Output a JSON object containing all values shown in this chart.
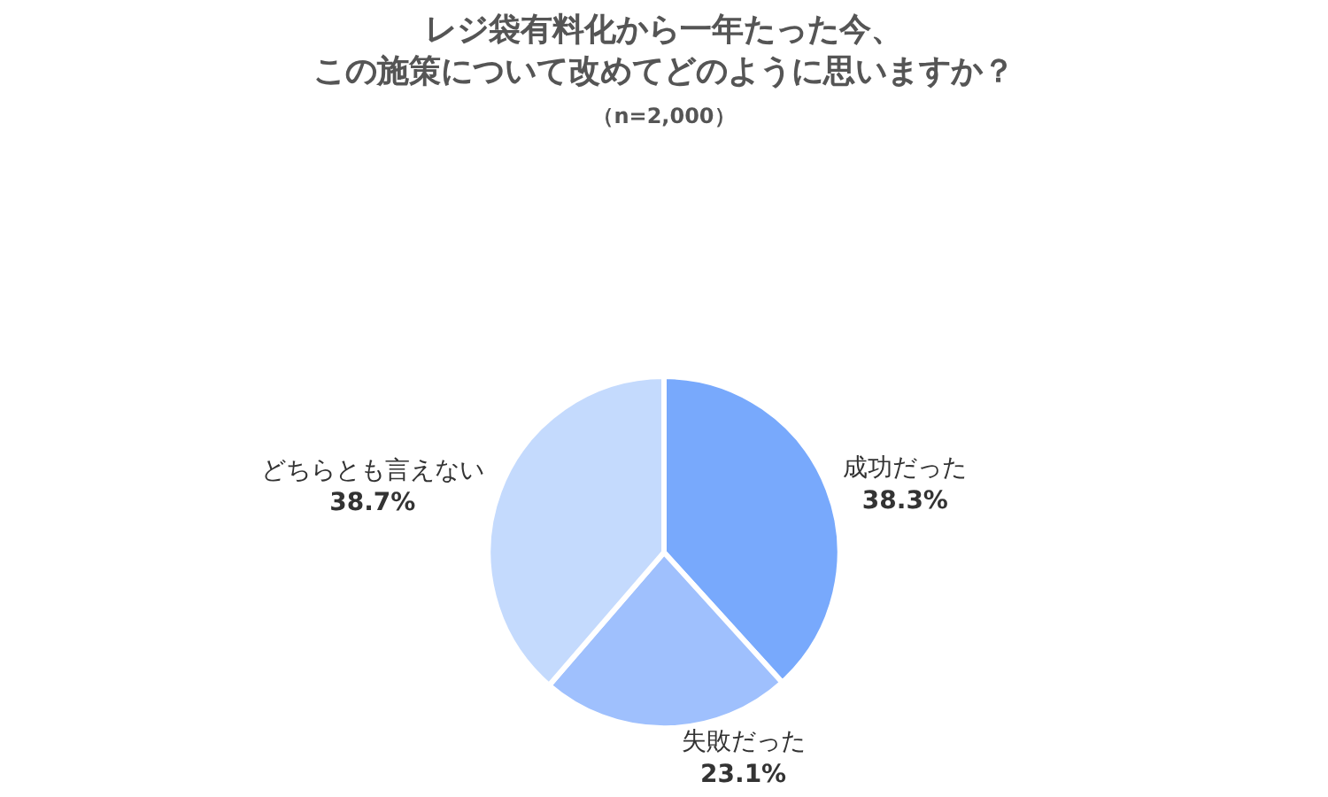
{
  "chart_data": {
    "type": "pie",
    "title": "レジ袋有料化から一年たった今、この施策について改めてどのように思いますか？",
    "subtitle": "（n=2,000）",
    "categories": [
      "成功だった",
      "失敗だった",
      "どちらとも言えない"
    ],
    "values": [
      38.3,
      23.1,
      38.7
    ],
    "value_labels": [
      "38.3%",
      "23.1%",
      "38.7%"
    ],
    "colors": [
      "#78a9fc",
      "#9fc0fd",
      "#c4dafd"
    ],
    "legend": false
  }
}
